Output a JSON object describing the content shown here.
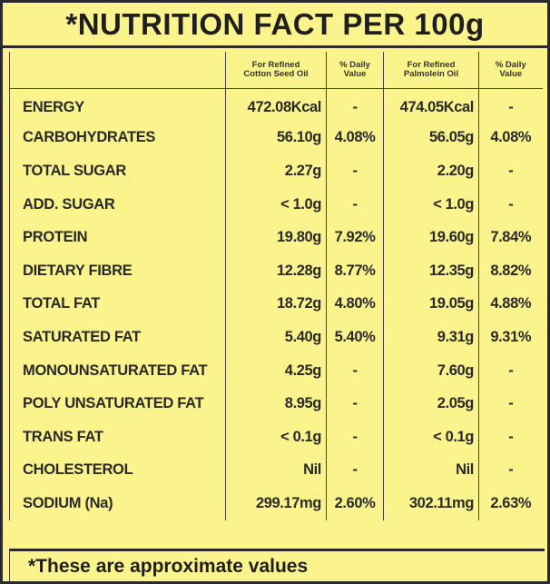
{
  "title": "*NUTRITION FACT PER 100g",
  "headers": {
    "col1_line1": "For Refined",
    "col1_line2": "Cotton Seed Oil",
    "col2_line1": "% Daily",
    "col2_line2": "Value",
    "col3_line1": "For Refined",
    "col3_line2": "Palmolein Oil",
    "col4_line1": "% Daily",
    "col4_line2": "Value"
  },
  "rows": [
    {
      "name": "ENERGY",
      "cotton": "472.08Kcal",
      "cotton_dv": "-",
      "palm": "474.05Kcal",
      "palm_dv": "-"
    },
    {
      "name": "CARBOHYDRATES",
      "cotton": "56.10g",
      "cotton_dv": "4.08%",
      "palm": "56.05g",
      "palm_dv": "4.08%"
    },
    {
      "name": "TOTAL SUGAR",
      "cotton": "2.27g",
      "cotton_dv": "-",
      "palm": "2.20g",
      "palm_dv": "-"
    },
    {
      "name": "ADD. SUGAR",
      "cotton": "< 1.0g",
      "cotton_dv": "-",
      "palm": "< 1.0g",
      "palm_dv": "-"
    },
    {
      "name": "PROTEIN",
      "cotton": "19.80g",
      "cotton_dv": "7.92%",
      "palm": "19.60g",
      "palm_dv": "7.84%"
    },
    {
      "name": "DIETARY FIBRE",
      "cotton": "12.28g",
      "cotton_dv": "8.77%",
      "palm": "12.35g",
      "palm_dv": "8.82%"
    },
    {
      "name": "TOTAL FAT",
      "cotton": "18.72g",
      "cotton_dv": "4.80%",
      "palm": "19.05g",
      "palm_dv": "4.88%"
    },
    {
      "name": "SATURATED FAT",
      "cotton": "5.40g",
      "cotton_dv": "5.40%",
      "palm": "9.31g",
      "palm_dv": "9.31%"
    },
    {
      "name": "MONOUNSATURATED FAT",
      "cotton": "4.25g",
      "cotton_dv": "-",
      "palm": "7.60g",
      "palm_dv": "-"
    },
    {
      "name": "POLY UNSATURATED FAT",
      "cotton": "8.95g",
      "cotton_dv": "-",
      "palm": "2.05g",
      "palm_dv": "-"
    },
    {
      "name": "TRANS FAT",
      "cotton": "< 0.1g",
      "cotton_dv": "-",
      "palm": "< 0.1g",
      "palm_dv": "-"
    },
    {
      "name": "CHOLESTEROL",
      "cotton": "Nil",
      "cotton_dv": "-",
      "palm": "Nil",
      "palm_dv": "-"
    },
    {
      "name": "SODIUM (Na)",
      "cotton": "299.17mg",
      "cotton_dv": "2.60%",
      "palm": "302.11mg",
      "palm_dv": "2.63%"
    }
  ],
  "footer": "*These are approximate values",
  "colors": {
    "background": "#fbf38c",
    "border": "#2a2a2a",
    "text": "#222222"
  }
}
